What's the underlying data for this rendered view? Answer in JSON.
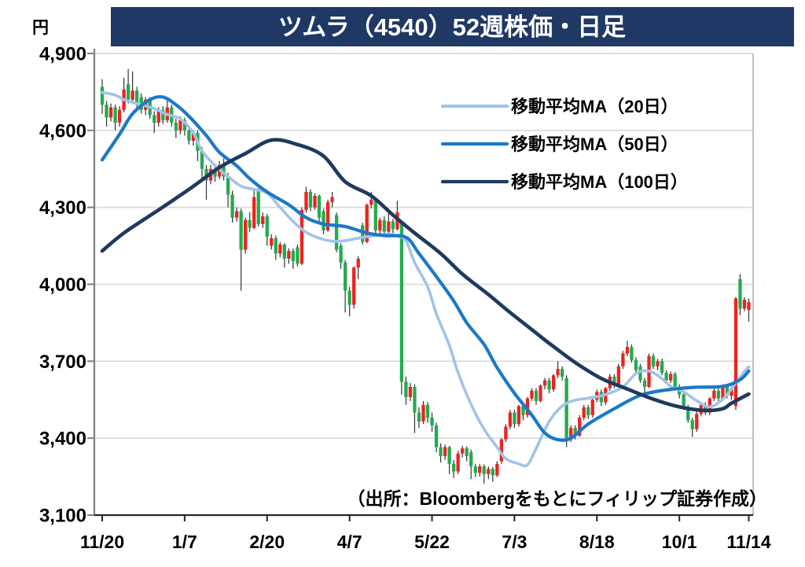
{
  "title": "ツムラ（4540）52週株価・日足",
  "source_note": "（出所：Bloombergをもとにフィリップ証券作成）",
  "y_axis": {
    "unit": "円",
    "tick_labels": [
      "4,900",
      "4,600",
      "4,300",
      "4,000",
      "3,700",
      "3,400",
      "3,100"
    ]
  },
  "x_axis": {
    "tick_labels": [
      "11/20",
      "1/7",
      "2/20",
      "4/7",
      "5/22",
      "7/3",
      "8/18",
      "10/1",
      "11/14"
    ]
  },
  "colors": {
    "banner_bg": "#1f3864",
    "banner_text": "#ffffff",
    "up_candle": "#ee2222",
    "down_candle": "#23ab4d",
    "wick": "#333333",
    "gridline": "#d9d9d9",
    "axis_line": "#808080",
    "bottom_axis": "#262626",
    "right_border": "#b0b0b0",
    "label_text": "#000000"
  },
  "chart_data": {
    "type": "candlestick",
    "title": "ツムラ（4540）52週株価・日足",
    "unit": "JPY",
    "y_range": [
      3100,
      4900
    ],
    "y_tick_step": 300,
    "grid": true,
    "legend_position": "top-right",
    "x_tick_indices": [
      0,
      19,
      38,
      57,
      76,
      95,
      114,
      133,
      149
    ],
    "x_tick_labels": [
      "11/20",
      "1/7",
      "2/20",
      "4/7",
      "5/22",
      "7/3",
      "8/18",
      "10/1",
      "11/14"
    ],
    "candles_format": [
      "open",
      "high",
      "low",
      "close"
    ],
    "candles": [
      [
        4770,
        4800,
        4665,
        4700
      ],
      [
        4700,
        4715,
        4615,
        4650
      ],
      [
        4650,
        4705,
        4635,
        4690
      ],
      [
        4690,
        4700,
        4600,
        4630
      ],
      [
        4630,
        4695,
        4615,
        4680
      ],
      [
        4680,
        4805,
        4670,
        4760
      ],
      [
        4780,
        4840,
        4705,
        4720
      ],
      [
        4720,
        4830,
        4710,
        4755
      ],
      [
        4755,
        4770,
        4685,
        4700
      ],
      [
        4730,
        4745,
        4665,
        4680
      ],
      [
        4680,
        4730,
        4660,
        4720
      ],
      [
        4720,
        4730,
        4645,
        4660
      ],
      [
        4660,
        4675,
        4590,
        4630
      ],
      [
        4630,
        4690,
        4615,
        4680
      ],
      [
        4680,
        4695,
        4625,
        4640
      ],
      [
        4640,
        4720,
        4630,
        4690
      ],
      [
        4690,
        4700,
        4615,
        4630
      ],
      [
        4630,
        4645,
        4570,
        4600
      ],
      [
        4600,
        4655,
        4585,
        4640
      ],
      [
        4640,
        4650,
        4580,
        4600
      ],
      [
        4600,
        4615,
        4545,
        4560
      ],
      [
        4560,
        4600,
        4540,
        4590
      ],
      [
        4590,
        4600,
        4480,
        4520
      ],
      [
        4520,
        4535,
        4410,
        4450
      ],
      [
        4450,
        4465,
        4330,
        4405
      ],
      [
        4405,
        4465,
        4390,
        4450
      ],
      [
        4450,
        4470,
        4400,
        4420
      ],
      [
        4420,
        4480,
        4410,
        4465
      ],
      [
        4465,
        4490,
        4405,
        4420
      ],
      [
        4420,
        4435,
        4300,
        4350
      ],
      [
        4350,
        4365,
        4240,
        4260
      ],
      [
        4260,
        4300,
        4245,
        4285
      ],
      [
        4285,
        4295,
        3975,
        4135
      ],
      [
        4135,
        4260,
        4120,
        4250
      ],
      [
        4250,
        4280,
        4205,
        4220
      ],
      [
        4220,
        4370,
        4215,
        4340
      ],
      [
        4365,
        4375,
        4225,
        4235
      ],
      [
        4235,
        4280,
        4220,
        4265
      ],
      [
        4265,
        4275,
        4150,
        4185
      ],
      [
        4150,
        4195,
        4135,
        4180
      ],
      [
        4180,
        4190,
        4095,
        4120
      ],
      [
        4120,
        4165,
        4105,
        4155
      ],
      [
        4155,
        4160,
        4065,
        4100
      ],
      [
        4100,
        4140,
        4080,
        4130
      ],
      [
        4130,
        4140,
        4060,
        4090
      ],
      [
        4145,
        4155,
        4070,
        4080
      ],
      [
        4080,
        4300,
        4075,
        4290
      ],
      [
        4290,
        4380,
        4280,
        4360
      ],
      [
        4360,
        4370,
        4285,
        4300
      ],
      [
        4300,
        4355,
        4290,
        4345
      ],
      [
        4345,
        4350,
        4245,
        4260
      ],
      [
        4285,
        4295,
        4195,
        4210
      ],
      [
        4210,
        4330,
        4205,
        4320
      ],
      [
        4320,
        4360,
        4300,
        4340
      ],
      [
        4270,
        4280,
        4125,
        4135
      ],
      [
        4150,
        4160,
        4060,
        4085
      ],
      [
        4085,
        4095,
        3890,
        3975
      ],
      [
        3975,
        3990,
        3875,
        3920
      ],
      [
        3920,
        4070,
        3905,
        4065
      ],
      [
        4065,
        4110,
        4020,
        4100
      ],
      [
        4230,
        4240,
        4155,
        4165
      ],
      [
        4165,
        4315,
        4160,
        4310
      ],
      [
        4310,
        4360,
        4295,
        4330
      ],
      [
        4330,
        4340,
        4200,
        4210
      ],
      [
        4210,
        4260,
        4195,
        4250
      ],
      [
        4250,
        4265,
        4190,
        4205
      ],
      [
        4205,
        4295,
        4195,
        4245
      ],
      [
        4245,
        4255,
        4200,
        4215
      ],
      [
        4215,
        4325,
        4210,
        4280
      ],
      [
        4240,
        4245,
        3570,
        3620
      ],
      [
        3620,
        3640,
        3530,
        3560
      ],
      [
        3560,
        3615,
        3545,
        3600
      ],
      [
        3600,
        3610,
        3420,
        3500
      ],
      [
        3500,
        3520,
        3440,
        3465
      ],
      [
        3465,
        3545,
        3455,
        3530
      ],
      [
        3530,
        3540,
        3460,
        3480
      ],
      [
        3480,
        3500,
        3425,
        3450
      ],
      [
        3450,
        3460,
        3345,
        3365
      ],
      [
        3365,
        3380,
        3305,
        3330
      ],
      [
        3330,
        3375,
        3315,
        3365
      ],
      [
        3365,
        3370,
        3260,
        3300
      ],
      [
        3300,
        3315,
        3245,
        3270
      ],
      [
        3270,
        3350,
        3260,
        3340
      ],
      [
        3340,
        3370,
        3325,
        3360
      ],
      [
        3360,
        3368,
        3310,
        3330
      ],
      [
        3345,
        3355,
        3240,
        3290
      ],
      [
        3290,
        3300,
        3248,
        3265
      ],
      [
        3265,
        3300,
        3250,
        3290
      ],
      [
        3290,
        3298,
        3222,
        3260
      ],
      [
        3260,
        3290,
        3240,
        3280
      ],
      [
        3280,
        3288,
        3230,
        3255
      ],
      [
        3255,
        3310,
        3248,
        3300
      ],
      [
        3310,
        3400,
        3300,
        3395
      ],
      [
        3395,
        3455,
        3385,
        3445
      ],
      [
        3445,
        3510,
        3435,
        3500
      ],
      [
        3500,
        3510,
        3440,
        3455
      ],
      [
        3455,
        3530,
        3445,
        3525
      ],
      [
        3525,
        3535,
        3470,
        3490
      ],
      [
        3490,
        3560,
        3480,
        3555
      ],
      [
        3555,
        3595,
        3545,
        3585
      ],
      [
        3585,
        3595,
        3530,
        3545
      ],
      [
        3545,
        3610,
        3540,
        3605
      ],
      [
        3605,
        3635,
        3590,
        3625
      ],
      [
        3625,
        3635,
        3575,
        3590
      ],
      [
        3590,
        3650,
        3580,
        3645
      ],
      [
        3645,
        3700,
        3635,
        3670
      ],
      [
        3670,
        3680,
        3625,
        3640
      ],
      [
        3635,
        3645,
        3365,
        3395
      ],
      [
        3395,
        3450,
        3385,
        3440
      ],
      [
        3440,
        3450,
        3395,
        3410
      ],
      [
        3410,
        3490,
        3405,
        3480
      ],
      [
        3480,
        3530,
        3470,
        3520
      ],
      [
        3520,
        3530,
        3475,
        3490
      ],
      [
        3490,
        3560,
        3480,
        3550
      ],
      [
        3550,
        3590,
        3540,
        3580
      ],
      [
        3580,
        3590,
        3525,
        3540
      ],
      [
        3540,
        3600,
        3530,
        3595
      ],
      [
        3595,
        3650,
        3585,
        3640
      ],
      [
        3640,
        3650,
        3595,
        3610
      ],
      [
        3610,
        3690,
        3600,
        3680
      ],
      [
        3680,
        3740,
        3670,
        3730
      ],
      [
        3730,
        3780,
        3720,
        3755
      ],
      [
        3755,
        3765,
        3695,
        3705
      ],
      [
        3705,
        3715,
        3650,
        3665
      ],
      [
        3680,
        3690,
        3615,
        3625
      ],
      [
        3625,
        3635,
        3575,
        3600
      ],
      [
        3600,
        3730,
        3595,
        3720
      ],
      [
        3720,
        3730,
        3670,
        3680
      ],
      [
        3680,
        3710,
        3665,
        3700
      ],
      [
        3700,
        3710,
        3645,
        3655
      ],
      [
        3655,
        3665,
        3615,
        3625
      ],
      [
        3625,
        3660,
        3615,
        3650
      ],
      [
        3650,
        3658,
        3590,
        3600
      ],
      [
        3600,
        3610,
        3555,
        3570
      ],
      [
        3570,
        3580,
        3510,
        3520
      ],
      [
        3520,
        3530,
        3460,
        3470
      ],
      [
        3470,
        3480,
        3405,
        3435
      ],
      [
        3435,
        3505,
        3425,
        3495
      ],
      [
        3495,
        3540,
        3485,
        3530
      ],
      [
        3530,
        3540,
        3490,
        3500
      ],
      [
        3500,
        3560,
        3490,
        3555
      ],
      [
        3555,
        3595,
        3545,
        3585
      ],
      [
        3585,
        3595,
        3545,
        3555
      ],
      [
        3555,
        3610,
        3545,
        3600
      ],
      [
        3600,
        3610,
        3555,
        3565
      ],
      [
        3565,
        3600,
        3550,
        3590
      ],
      [
        3525,
        3950,
        3510,
        3945
      ],
      [
        4020,
        4040,
        3880,
        3905
      ],
      [
        3905,
        3950,
        3895,
        3940
      ],
      [
        3900,
        3945,
        3855,
        3930
      ]
    ],
    "moving_averages": [
      {
        "name": "MA20",
        "label": "移動平均MA（20日）",
        "color": "#a3c3e8",
        "points": [
          [
            0,
            4748
          ],
          [
            3,
            4738
          ],
          [
            5,
            4720
          ],
          [
            8,
            4705
          ],
          [
            12,
            4685
          ],
          [
            15,
            4662
          ],
          [
            18,
            4645
          ],
          [
            21,
            4590
          ],
          [
            23,
            4520
          ],
          [
            26,
            4463
          ],
          [
            29,
            4420
          ],
          [
            32,
            4383
          ],
          [
            35,
            4370
          ],
          [
            38,
            4356
          ],
          [
            41,
            4300
          ],
          [
            44,
            4245
          ],
          [
            47,
            4203
          ],
          [
            50,
            4180
          ],
          [
            53,
            4168
          ],
          [
            56,
            4170
          ],
          [
            59,
            4180
          ],
          [
            62,
            4188
          ],
          [
            66,
            4196
          ],
          [
            68,
            4188
          ],
          [
            70,
            4170
          ],
          [
            72,
            4085
          ],
          [
            75,
            3990
          ],
          [
            77,
            3885
          ],
          [
            80,
            3762
          ],
          [
            82,
            3655
          ],
          [
            85,
            3532
          ],
          [
            88,
            3435
          ],
          [
            91,
            3365
          ],
          [
            93,
            3320
          ],
          [
            96,
            3300
          ],
          [
            98,
            3296
          ],
          [
            100,
            3360
          ],
          [
            103,
            3465
          ],
          [
            106,
            3525
          ],
          [
            109,
            3548
          ],
          [
            112,
            3556
          ],
          [
            116,
            3570
          ],
          [
            120,
            3600
          ],
          [
            123,
            3652
          ],
          [
            126,
            3662
          ],
          [
            129,
            3632
          ],
          [
            131,
            3602
          ],
          [
            134,
            3580
          ],
          [
            137,
            3546
          ],
          [
            140,
            3522
          ],
          [
            143,
            3552
          ],
          [
            145,
            3592
          ],
          [
            148,
            3660
          ],
          [
            149,
            3678
          ]
        ]
      },
      {
        "name": "MA50",
        "label": "移動平均MA（50日）",
        "color": "#1b79c7",
        "points": [
          [
            0,
            4485
          ],
          [
            4,
            4585
          ],
          [
            7,
            4665
          ],
          [
            11,
            4720
          ],
          [
            14,
            4730
          ],
          [
            17,
            4700
          ],
          [
            20,
            4655
          ],
          [
            24,
            4580
          ],
          [
            27,
            4515
          ],
          [
            31,
            4462
          ],
          [
            34,
            4412
          ],
          [
            38,
            4360
          ],
          [
            43,
            4310
          ],
          [
            47,
            4260
          ],
          [
            51,
            4235
          ],
          [
            56,
            4225
          ],
          [
            61,
            4200
          ],
          [
            65,
            4190
          ],
          [
            70,
            4183
          ],
          [
            73,
            4120
          ],
          [
            77,
            4030
          ],
          [
            81,
            3935
          ],
          [
            84,
            3850
          ],
          [
            88,
            3765
          ],
          [
            91,
            3675
          ],
          [
            95,
            3575
          ],
          [
            99,
            3490
          ],
          [
            102,
            3420
          ],
          [
            105,
            3394
          ],
          [
            108,
            3400
          ],
          [
            112,
            3455
          ],
          [
            118,
            3515
          ],
          [
            124,
            3567
          ],
          [
            130,
            3588
          ],
          [
            136,
            3598
          ],
          [
            143,
            3602
          ],
          [
            147,
            3628
          ],
          [
            149,
            3662
          ]
        ]
      },
      {
        "name": "MA100",
        "label": "移動平均MA（100日）",
        "color": "#20395f",
        "points": [
          [
            0,
            4130
          ],
          [
            5,
            4200
          ],
          [
            13,
            4290
          ],
          [
            20,
            4370
          ],
          [
            27,
            4455
          ],
          [
            33,
            4510
          ],
          [
            39,
            4562
          ],
          [
            45,
            4545
          ],
          [
            51,
            4500
          ],
          [
            56,
            4400
          ],
          [
            62,
            4345
          ],
          [
            67,
            4270
          ],
          [
            72,
            4200
          ],
          [
            78,
            4120
          ],
          [
            83,
            4040
          ],
          [
            89,
            3960
          ],
          [
            94,
            3890
          ],
          [
            100,
            3810
          ],
          [
            103,
            3770
          ],
          [
            109,
            3695
          ],
          [
            115,
            3633
          ],
          [
            121,
            3592
          ],
          [
            127,
            3552
          ],
          [
            133,
            3522
          ],
          [
            139,
            3508
          ],
          [
            143,
            3515
          ],
          [
            145,
            3536
          ],
          [
            149,
            3572
          ]
        ]
      }
    ]
  }
}
